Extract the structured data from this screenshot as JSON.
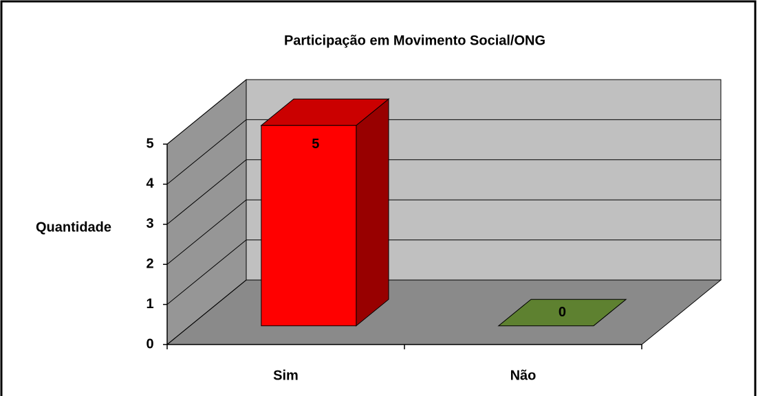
{
  "chart_data": {
    "type": "bar3d",
    "title": "Participação em Movimento Social/ONG",
    "y_label": "Quantidade",
    "categories": [
      "Sim",
      "Não"
    ],
    "values": [
      5,
      0
    ],
    "colors": [
      "#ff0000",
      "#76a33d"
    ],
    "ylim": [
      0,
      5
    ],
    "yticks": [
      0,
      1,
      2,
      3,
      4,
      5
    ],
    "grid": true
  }
}
